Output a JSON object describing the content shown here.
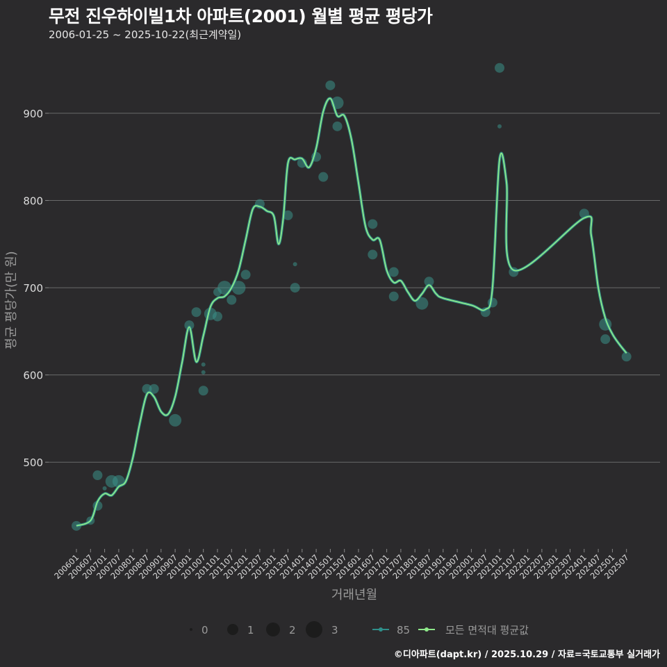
{
  "header": {
    "title": "무전 진우하이빌1차 아파트(2001) 월별 평균 평당가",
    "subtitle": "2006-01-25 ~ 2025-10-22(최근계약일)"
  },
  "footer": {
    "credit": "©디아파트(dapt.kr) / 2025.10.29 / 자료=국토교통부 실거래가"
  },
  "colors": {
    "background": "#2b2a2c",
    "grid": "#6a6a6a",
    "series_85": "#2f8f8a",
    "series_avg": "#8ee88a",
    "bubble": "#3a8f88"
  },
  "legend": {
    "size_items": [
      {
        "label": "0",
        "r": 2
      },
      {
        "label": "1",
        "r": 8
      },
      {
        "label": "2",
        "r": 10
      },
      {
        "label": "3",
        "r": 12
      }
    ],
    "line_items": [
      {
        "label": "85",
        "color": "#2f8f8a"
      },
      {
        "label": "모든 면적대 평균값",
        "color": "#8ee88a"
      }
    ]
  },
  "chart_data": {
    "type": "line",
    "title": "무전 진우하이빌1차 아파트(2001) 월별 평균 평당가",
    "subtitle": "2006-01-25 ~ 2025-10-22(최근계약일)",
    "xlabel": "거래년월",
    "ylabel": "평균 평당가(만 원)",
    "ylim": [
      400,
      960
    ],
    "yticks": [
      500,
      600,
      700,
      800,
      900
    ],
    "grid": true,
    "legend_position": "bottom",
    "categories": [
      "200601",
      "200607",
      "200701",
      "200707",
      "200801",
      "200807",
      "200901",
      "200907",
      "201001",
      "201007",
      "201101",
      "201107",
      "201201",
      "201207",
      "201301",
      "201307",
      "201401",
      "201407",
      "201501",
      "201507",
      "201601",
      "201607",
      "201701",
      "201707",
      "201801",
      "201807",
      "201901",
      "201907",
      "202001",
      "202007",
      "202101",
      "202107",
      "202201",
      "202207",
      "202301",
      "202307",
      "202401",
      "202407",
      "202501",
      "202507"
    ],
    "series": [
      {
        "name": "모든 면적대 평균값",
        "points": [
          [
            "200601",
            427
          ],
          [
            "200607",
            433
          ],
          [
            "200610",
            455
          ],
          [
            "200701",
            464
          ],
          [
            "200704",
            462
          ],
          [
            "200707",
            472
          ],
          [
            "200710",
            478
          ],
          [
            "200801",
            505
          ],
          [
            "200804",
            545
          ],
          [
            "200807",
            578
          ],
          [
            "200810",
            575
          ],
          [
            "200901",
            558
          ],
          [
            "200904",
            555
          ],
          [
            "200907",
            575
          ],
          [
            "200910",
            615
          ],
          [
            "201001",
            655
          ],
          [
            "201004",
            615
          ],
          [
            "201007",
            645
          ],
          [
            "201010",
            678
          ],
          [
            "201101",
            688
          ],
          [
            "201104",
            690
          ],
          [
            "201107",
            700
          ],
          [
            "201110",
            720
          ],
          [
            "201201",
            755
          ],
          [
            "201204",
            790
          ],
          [
            "201207",
            793
          ],
          [
            "201210",
            788
          ],
          [
            "201301",
            782
          ],
          [
            "201303",
            750
          ],
          [
            "201305",
            780
          ],
          [
            "201307",
            843
          ],
          [
            "201310",
            847
          ],
          [
            "201401",
            848
          ],
          [
            "201404",
            838
          ],
          [
            "201407",
            860
          ],
          [
            "201410",
            902
          ],
          [
            "201501",
            917
          ],
          [
            "201504",
            897
          ],
          [
            "201507",
            897
          ],
          [
            "201510",
            870
          ],
          [
            "201601",
            820
          ],
          [
            "201604",
            770
          ],
          [
            "201607",
            755
          ],
          [
            "201610",
            755
          ],
          [
            "201701",
            720
          ],
          [
            "201704",
            706
          ],
          [
            "201707",
            708
          ],
          [
            "201710",
            695
          ],
          [
            "201801",
            685
          ],
          [
            "201804",
            693
          ],
          [
            "201807",
            703
          ],
          [
            "201810",
            693
          ],
          [
            "201901",
            688
          ],
          [
            "202001",
            680
          ],
          [
            "202007",
            675
          ],
          [
            "202010",
            700
          ],
          [
            "202101",
            847
          ],
          [
            "202104",
            820
          ],
          [
            "202107",
            720
          ],
          [
            "202401",
            780
          ],
          [
            "202404",
            760
          ],
          [
            "202407",
            700
          ],
          [
            "202410",
            665
          ],
          [
            "202501",
            647
          ],
          [
            "202504",
            635
          ],
          [
            "202507",
            625
          ]
        ]
      },
      {
        "name": "85",
        "bubbles": [
          [
            "200601",
            427,
            7
          ],
          [
            "200607",
            433,
            6
          ],
          [
            "200610",
            485,
            7
          ],
          [
            "200610",
            450,
            7
          ],
          [
            "200701",
            470,
            3
          ],
          [
            "200704",
            478,
            9
          ],
          [
            "200707",
            478,
            9
          ],
          [
            "200807",
            584,
            7
          ],
          [
            "200810",
            584,
            7
          ],
          [
            "200907",
            548,
            9
          ],
          [
            "201001",
            657,
            7
          ],
          [
            "201004",
            672,
            7
          ],
          [
            "201007",
            612,
            3
          ],
          [
            "201007",
            603,
            3
          ],
          [
            "201007",
            582,
            7
          ],
          [
            "201010",
            670,
            9
          ],
          [
            "201101",
            695,
            6
          ],
          [
            "201101",
            667,
            7
          ],
          [
            "201104",
            700,
            10
          ],
          [
            "201107",
            686,
            7
          ],
          [
            "201110",
            700,
            10
          ],
          [
            "201201",
            715,
            7
          ],
          [
            "201207",
            796,
            7
          ],
          [
            "201307",
            783,
            7
          ],
          [
            "201310",
            727,
            3
          ],
          [
            "201310",
            700,
            7
          ],
          [
            "201401",
            843,
            7
          ],
          [
            "201407",
            850,
            7
          ],
          [
            "201410",
            827,
            7
          ],
          [
            "201501",
            932,
            7
          ],
          [
            "201504",
            912,
            9
          ],
          [
            "201504",
            885,
            7
          ],
          [
            "201607",
            773,
            7
          ],
          [
            "201607",
            738,
            7
          ],
          [
            "201704",
            718,
            7
          ],
          [
            "201704",
            690,
            7
          ],
          [
            "201804",
            682,
            9
          ],
          [
            "201807",
            707,
            7
          ],
          [
            "202007",
            672,
            7
          ],
          [
            "202010",
            683,
            7
          ],
          [
            "202101",
            952,
            7
          ],
          [
            "202101",
            885,
            3
          ],
          [
            "202107",
            718,
            7
          ],
          [
            "202401",
            785,
            7
          ],
          [
            "202410",
            658,
            9
          ],
          [
            "202410",
            641,
            7
          ],
          [
            "202507",
            621,
            7
          ]
        ]
      }
    ]
  },
  "axes": {
    "x_ticks": [
      "200601",
      "200607",
      "200701",
      "200707",
      "200801",
      "200807",
      "200901",
      "200907",
      "201001",
      "201007",
      "201101",
      "201107",
      "201201",
      "201207",
      "201301",
      "201307",
      "201401",
      "201407",
      "201501",
      "201507",
      "201601",
      "201607",
      "201701",
      "201707",
      "201801",
      "201807",
      "201901",
      "201907",
      "202001",
      "202007",
      "202101",
      "202107",
      "202201",
      "202207",
      "202301",
      "202307",
      "202401",
      "202407",
      "202501",
      "202507"
    ],
    "y_ticks": [
      "500",
      "600",
      "700",
      "800",
      "900"
    ],
    "xlabel": "거래년월",
    "ylabel": "평균 평당가(만 원)"
  }
}
